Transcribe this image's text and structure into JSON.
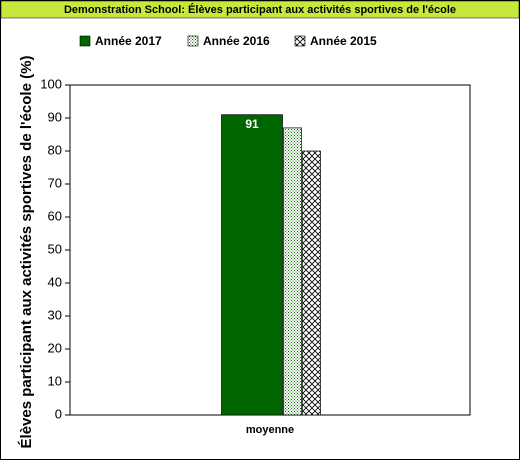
{
  "chart_data": {
    "type": "bar",
    "title": "Demonstration School: Élèves participant aux activités sportives de l'école",
    "y_label": "Élèves participant aux activités sportives de l'école (%)",
    "categories": [
      "moyenne"
    ],
    "series": [
      {
        "name": "Année 2017",
        "color": "#006600",
        "pattern": "solid",
        "values": [
          91
        ],
        "show_values": true
      },
      {
        "name": "Année 2016",
        "color": "#006600",
        "pattern": "dots",
        "values": [
          87
        ]
      },
      {
        "name": "Année 2015",
        "color": "#000000",
        "pattern": "crosshatch",
        "values": [
          80
        ]
      }
    ],
    "ylim": [
      0,
      100
    ],
    "yticks": [
      0,
      10,
      20,
      30,
      40,
      50,
      60,
      70,
      80,
      90,
      100
    ],
    "grid": false
  }
}
